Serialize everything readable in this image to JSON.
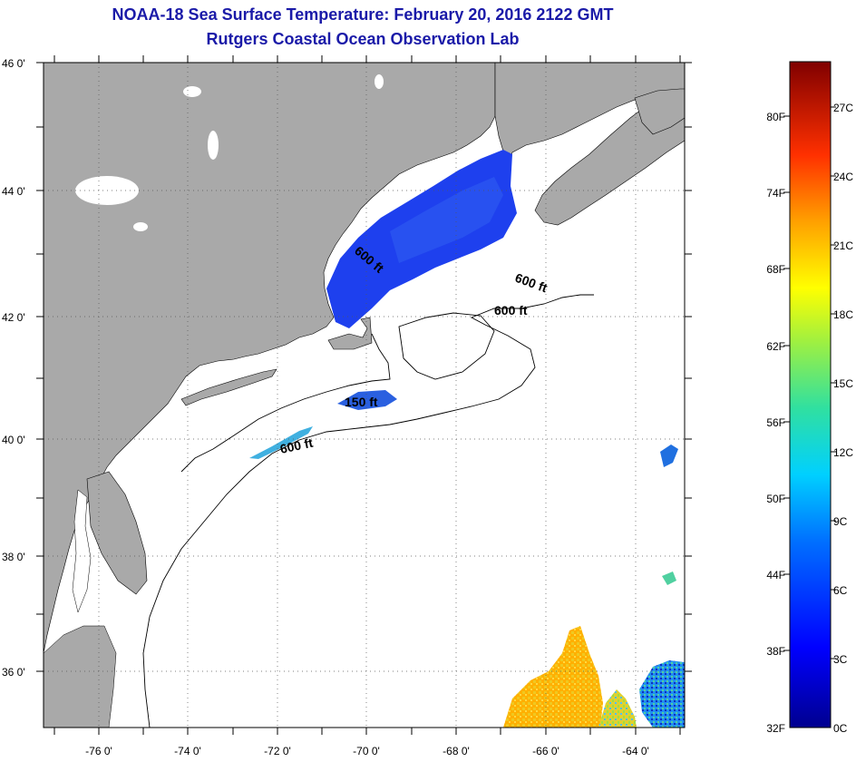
{
  "title": {
    "line1": "NOAA-18 Sea Surface Temperature:  February 20, 2016 2122 GMT",
    "line2": "Rutgers Coastal Ocean Observation Lab"
  },
  "map": {
    "lat_labels": [
      "46 0'",
      "44 0'",
      "42 0'",
      "40 0'",
      "38 0'",
      "36 0'"
    ],
    "lon_labels": [
      "-76 0'",
      "-74 0'",
      "-72 0'",
      "-70 0'",
      "-68 0'",
      "-66 0'",
      "-64 0'"
    ],
    "contour_labels": [
      "600 ft",
      "600 ft",
      "600 ft",
      "150 ft",
      "600 ft"
    ],
    "land_color": "#a9a9a9",
    "ocean_color": "#ffffff"
  },
  "colorbar": {
    "fahrenheit_labels": [
      "80F",
      "74F",
      "68F",
      "62F",
      "56F",
      "50F",
      "44F",
      "38F",
      "32F"
    ],
    "celsius_labels": [
      "27C",
      "24C",
      "21C",
      "18C",
      "15C",
      "12C",
      "9C",
      "6C",
      "3C",
      "0C"
    ]
  }
}
